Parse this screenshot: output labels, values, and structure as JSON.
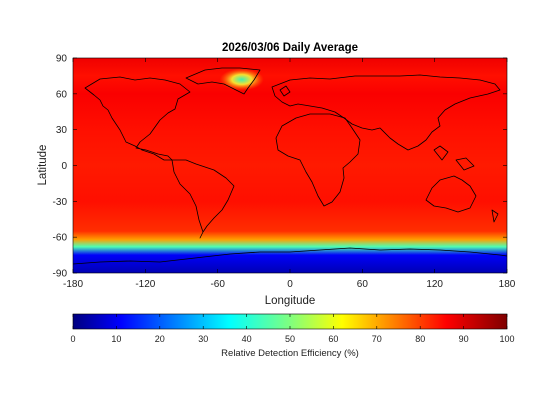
{
  "chart_data": {
    "type": "heatmap",
    "title": "2026/03/06 Daily Average",
    "xlabel": "Longitude",
    "ylabel": "Latitude",
    "xlim": [
      -180,
      180
    ],
    "ylim": [
      -90,
      90
    ],
    "xticks": [
      -180,
      -120,
      -60,
      0,
      60,
      120,
      180
    ],
    "yticks": [
      90,
      60,
      30,
      0,
      -30,
      -60,
      -90
    ],
    "colorbar": {
      "label": "Relative Detection Efficiency (%)",
      "range": [
        0,
        100
      ],
      "ticks": [
        0,
        10,
        20,
        30,
        40,
        50,
        60,
        70,
        80,
        90,
        100
      ],
      "colormap": "jet"
    },
    "zonal_mean_efficiency": [
      {
        "lat": 90,
        "value": 89
      },
      {
        "lat": 75,
        "value": 86
      },
      {
        "lat": 60,
        "value": 88
      },
      {
        "lat": 30,
        "value": 86
      },
      {
        "lat": 0,
        "value": 85
      },
      {
        "lat": -30,
        "value": 86
      },
      {
        "lat": -55,
        "value": 83
      },
      {
        "lat": -62,
        "value": 72
      },
      {
        "lat": -68,
        "value": 45
      },
      {
        "lat": -75,
        "value": 12
      },
      {
        "lat": -90,
        "value": 5
      }
    ],
    "greenland_anomaly": {
      "lon": -40,
      "lat": 72,
      "value": 55
    }
  }
}
